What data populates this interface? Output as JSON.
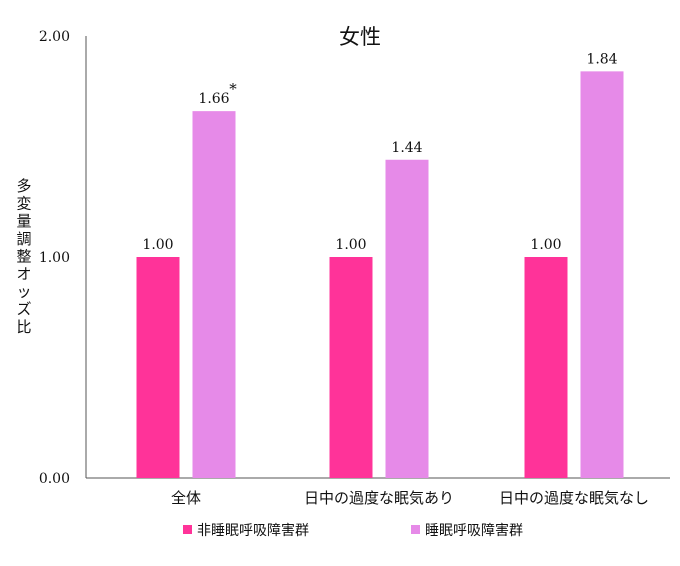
{
  "chart_data": {
    "type": "bar",
    "title": "女性",
    "ylabel": "多変量調整オッズ比",
    "xlabel": "",
    "ylim": [
      0,
      2
    ],
    "yticks": [
      "0.00",
      "1.00",
      "2.00"
    ],
    "ytick_values": [
      0,
      1,
      2
    ],
    "categories": [
      "全体",
      "日中の過度な眠気あり",
      "日中の過度な眠気なし"
    ],
    "series": [
      {
        "name": "非睡眠呼吸障害群",
        "color": "#FF3399",
        "values": [
          1.0,
          1.0,
          1.0
        ],
        "labels": [
          "1.00",
          "1.00",
          "1.00"
        ]
      },
      {
        "name": "睡眠呼吸障害群",
        "color": "#E68AE8",
        "values": [
          1.66,
          1.44,
          1.84
        ],
        "labels": [
          "1.66",
          "1.44",
          "1.84"
        ]
      }
    ],
    "annotations": [
      {
        "text": "*",
        "series": 1,
        "category": 0
      }
    ],
    "grid": false,
    "legend_position": "bottom"
  }
}
